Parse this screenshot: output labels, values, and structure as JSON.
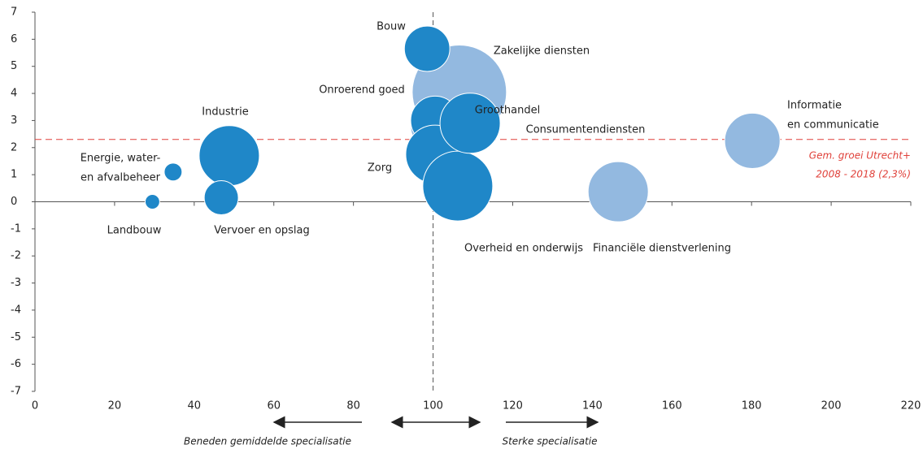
{
  "chart_data": {
    "type": "bubble",
    "categories": [
      "Zakelijke diensten",
      "Onroerend goed",
      "Consumentendiensten",
      "Zorg",
      "Overheid en onderwijs",
      "Groothandel",
      "Bouw",
      "Industrie",
      "Vervoer en opslag",
      [
        "Energie, water-",
        "en afvalbeheer"
      ],
      "Landbouw",
      "Financiële dienstverlening",
      [
        "Informatie",
        "en communicatie"
      ]
    ],
    "x": [
      106.6,
      100.9,
      100.5,
      100.5,
      106.2,
      109.3,
      98.5,
      48.8,
      46.8,
      34.7,
      29.5,
      146.5,
      180.2
    ],
    "values": [
      4.05,
      2.8,
      3.0,
      1.75,
      0.58,
      2.9,
      5.65,
      1.7,
      0.15,
      1.1,
      0.0,
      0.37,
      2.25
    ],
    "sizes": [
      33.6,
      10.2,
      9.0,
      13.0,
      18.5,
      13.7,
      7.8,
      13.7,
      4.4,
      1.2,
      0.8,
      13.7,
      11.6
    ],
    "colors": [
      "#93b9e0",
      "#93b9e0",
      "#1f87c8",
      "#1f87c8",
      "#1f87c8",
      "#1f87c8",
      "#1f87c8",
      "#1f87c8",
      "#1f87c8",
      "#1f87c8",
      "#1f87c8",
      "#93b9e0",
      "#93b9e0"
    ],
    "xlim": [
      0,
      220
    ],
    "xticks": [
      0,
      20,
      40,
      60,
      80,
      100,
      120,
      140,
      160,
      180,
      200,
      220
    ],
    "ylim": [
      -7,
      7
    ],
    "yticks": [
      -7,
      -6,
      -5,
      -4,
      -3,
      -2,
      -1,
      0,
      1,
      2,
      3,
      4,
      5,
      6,
      7
    ],
    "vertical_line": 100,
    "reference_line": {
      "value": 2.3,
      "color": "#e0413a",
      "label": [
        "Gem. groei Utrecht+",
        "2008 - 2018 (2,3%)"
      ]
    },
    "annotations": [
      "Beneden gemiddelde specialisatie",
      "Sterke specialisatie"
    ]
  }
}
